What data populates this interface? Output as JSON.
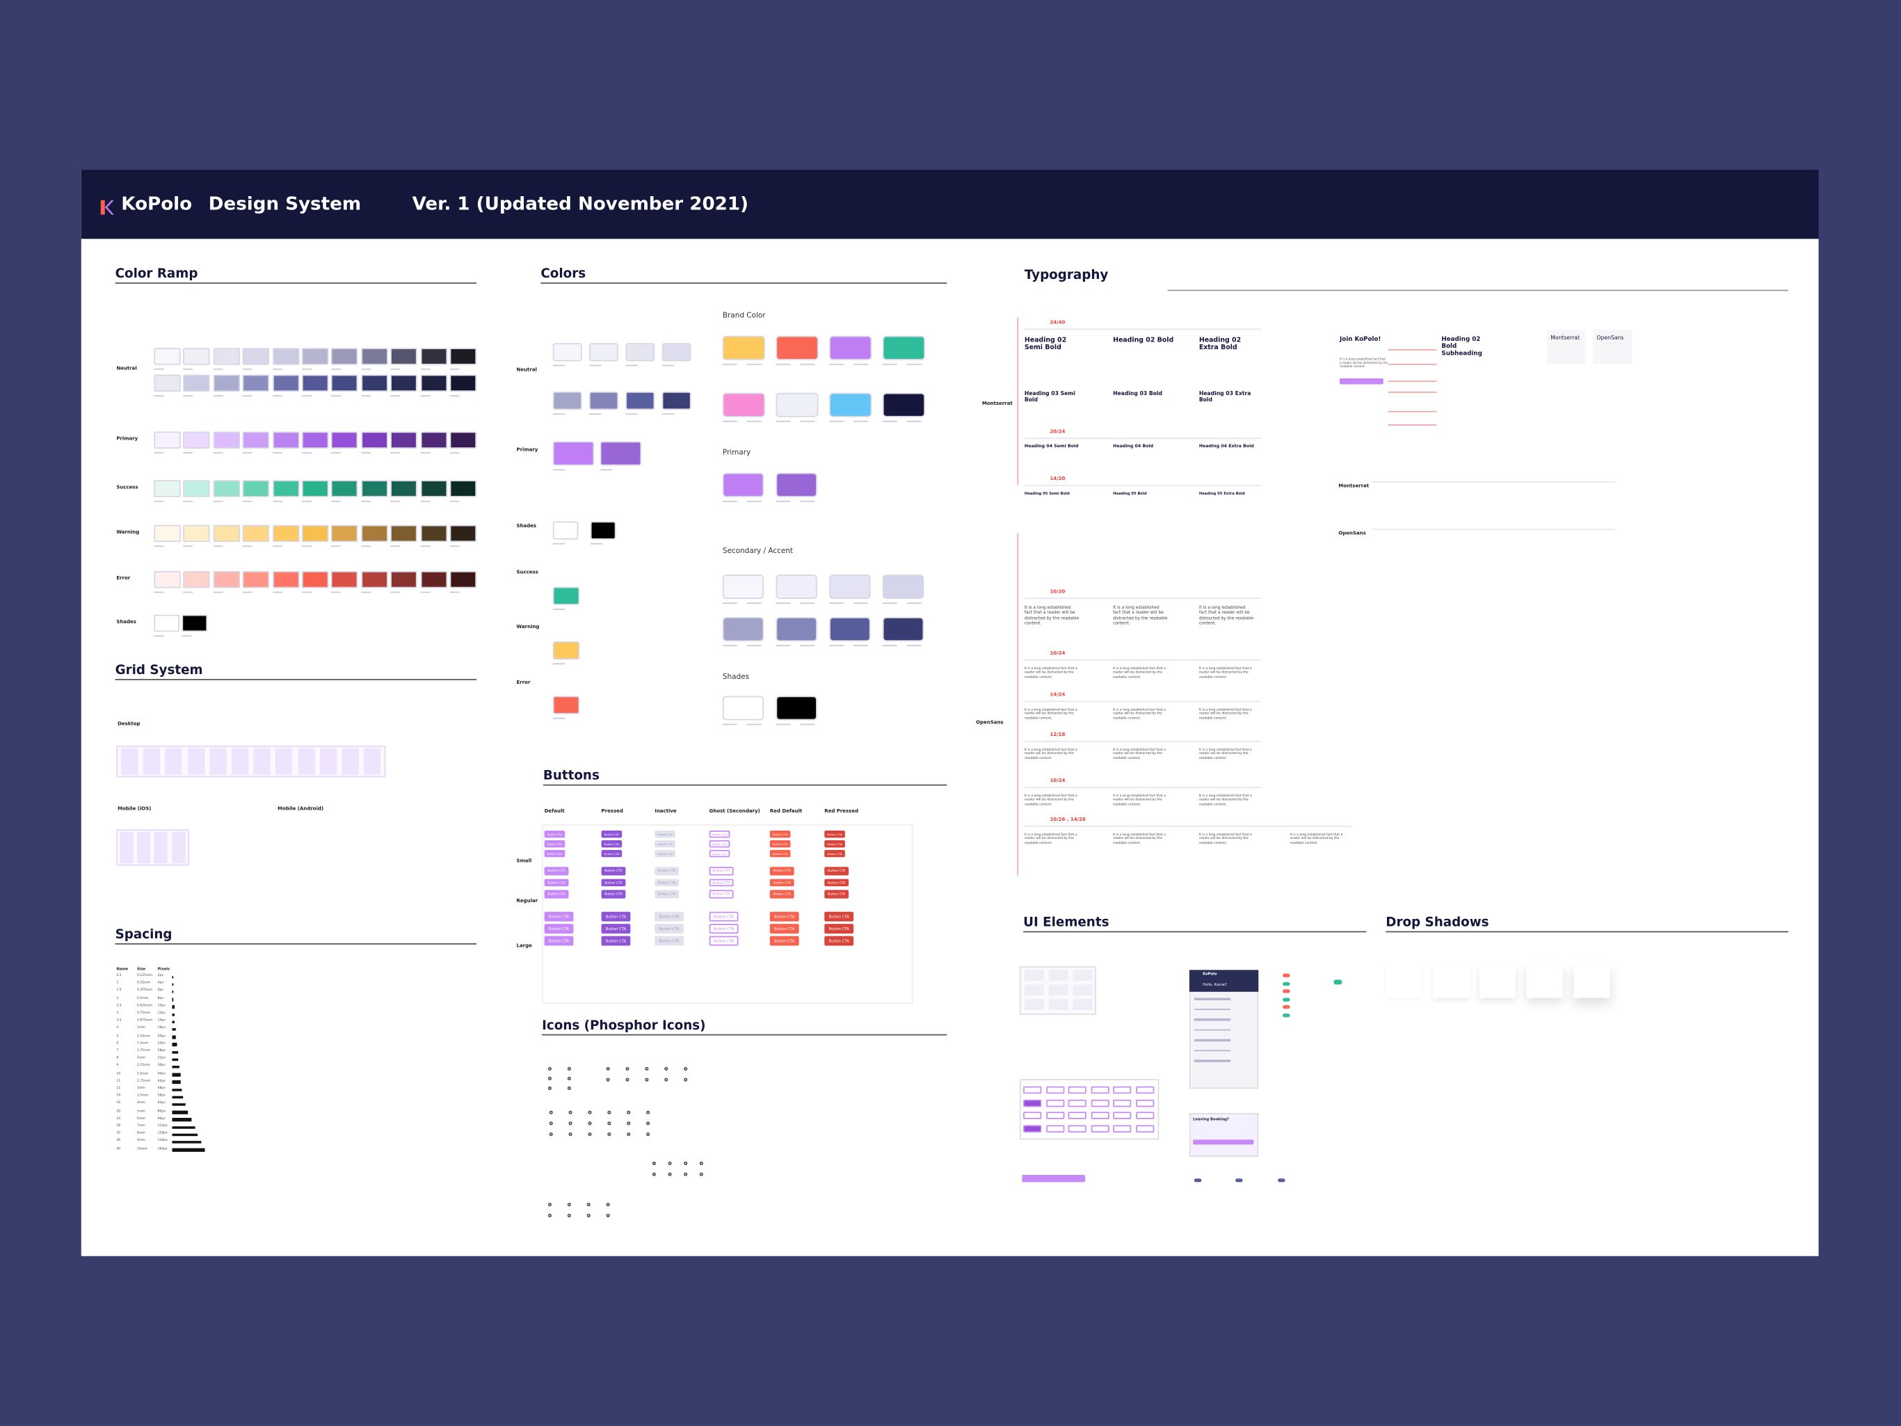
{
  "header": {
    "logo": "KoPolo",
    "title": "Design System",
    "version": "Ver. 1 (Updated November 2021)"
  },
  "color_ramp": {
    "title": "Color Ramp",
    "rows": [
      {
        "label": "Neutral",
        "ramps": [
          [
            "#f7f7fb",
            "#efeff6",
            "#e4e4f0",
            "#d8d8ea",
            "#cacae0",
            "#b5b5d0",
            "#9a9ab8",
            "#7b7b99",
            "#55556e",
            "#32323f",
            "#1c1c24"
          ],
          [
            "#e8e9f3",
            "#c9cbe3",
            "#a9abcf",
            "#8a8dbd",
            "#6c70aa",
            "#535899",
            "#444a85",
            "#363b6d",
            "#2a2e56",
            "#1e2140",
            "#14162d"
          ]
        ]
      },
      {
        "label": "Primary",
        "ramps": [
          [
            "#f8f0ff",
            "#ecd9ff",
            "#dcbcfc",
            "#cc9ef7",
            "#bb82f2",
            "#a866e8",
            "#9450d8",
            "#7d3fbf",
            "#673399",
            "#4f2876",
            "#361c52"
          ]
        ]
      },
      {
        "label": "Success",
        "ramps": [
          [
            "#e6f7f2",
            "#bff0e1",
            "#94e2cc",
            "#66d2b4",
            "#3ec29e",
            "#28b38c",
            "#22977a",
            "#1d7c65",
            "#175f4f",
            "#12443a",
            "#0c2a25"
          ]
        ]
      },
      {
        "label": "Warning",
        "ramps": [
          [
            "#fff8ea",
            "#ffefc8",
            "#ffe3a6",
            "#ffd683",
            "#fdca62",
            "#f7c04e",
            "#d9a24b",
            "#a77c3b",
            "#7d5d2e",
            "#523e21",
            "#2e2316"
          ]
        ]
      },
      {
        "label": "Error",
        "ramps": [
          [
            "#fff0ee",
            "#ffd3cd",
            "#ffb3aa",
            "#ff9487",
            "#ff7566",
            "#f7634f",
            "#dc5145",
            "#b2413a",
            "#8a322e",
            "#632422",
            "#3d1716"
          ]
        ]
      },
      {
        "label": "Shades",
        "ramps": [
          [
            "#ffffff",
            "#000000"
          ]
        ]
      }
    ]
  },
  "grid_system": {
    "title": "Grid System",
    "labels": [
      "Desktop",
      "Mobile (iOS)",
      "Mobile (Android)"
    ]
  },
  "spacing": {
    "title": "Spacing",
    "columns": [
      "Name",
      "Size",
      "Pixels"
    ],
    "rows": [
      [
        "0.5",
        "0.125rem",
        "2px"
      ],
      [
        "1",
        "0.25rem",
        "4px"
      ],
      [
        "1.5",
        "0.375rem",
        "6px"
      ],
      [
        "2",
        "0.5rem",
        "8px"
      ],
      [
        "2.5",
        "0.625rem",
        "10px"
      ],
      [
        "3",
        "0.75rem",
        "12px"
      ],
      [
        "3.5",
        "0.875rem",
        "14px"
      ],
      [
        "4",
        "1rem",
        "16px"
      ],
      [
        "5",
        "1.25rem",
        "20px"
      ],
      [
        "6",
        "1.5rem",
        "24px"
      ],
      [
        "7",
        "1.75rem",
        "28px"
      ],
      [
        "8",
        "2rem",
        "32px"
      ],
      [
        "9",
        "2.25rem",
        "36px"
      ],
      [
        "10",
        "2.5rem",
        "40px"
      ],
      [
        "11",
        "2.75rem",
        "44px"
      ],
      [
        "12",
        "3rem",
        "48px"
      ],
      [
        "14",
        "3.5rem",
        "56px"
      ],
      [
        "16",
        "4rem",
        "64px"
      ],
      [
        "20",
        "5rem",
        "80px"
      ],
      [
        "24",
        "6rem",
        "96px"
      ],
      [
        "28",
        "7rem",
        "112px"
      ],
      [
        "32",
        "8rem",
        "128px"
      ],
      [
        "36",
        "9rem",
        "144px"
      ],
      [
        "40",
        "10rem",
        "160px"
      ]
    ]
  },
  "colors": {
    "title": "Colors",
    "groups": [
      {
        "label": "Neutral",
        "colors": [
          "#f7f7fb",
          "#efeff7",
          "#e6e6f3",
          "#dedeef",
          "#a3a5c9",
          "#8386b6",
          "#5a5f9f",
          "#3b3f73"
        ]
      },
      {
        "label": "Primary",
        "colors": [
          "#c07ef5",
          "#9966d6"
        ]
      },
      {
        "label": "Shades",
        "colors": [
          "#ffffff",
          "#000000"
        ]
      },
      {
        "label": "Success",
        "colors": [
          "#2fbc9a"
        ]
      },
      {
        "label": "Warning",
        "colors": [
          "#fdc95d"
        ]
      },
      {
        "label": "Error",
        "colors": [
          "#fa6855"
        ]
      }
    ],
    "brand": {
      "label": "Brand Color",
      "colors": [
        "#fdc95d",
        "#fa6855",
        "#c07ef5",
        "#2fbc9a",
        "#f88bd6",
        "#efeff9",
        "#64c6f7",
        "#15163c"
      ]
    },
    "primary": {
      "label": "Primary",
      "colors": [
        "#c07ef5",
        "#9966d6"
      ]
    },
    "accent": {
      "label": "Secondary / Accent",
      "colors": [
        "#f7f6fd",
        "#efeefa",
        "#e3e3f3",
        "#d4d4ea",
        "#a2a3c9",
        "#8286b8",
        "#575c9a",
        "#383c70"
      ]
    },
    "shades": {
      "label": "Shades",
      "colors": [
        "#ffffff",
        "#000000"
      ]
    }
  },
  "buttons": {
    "title": "Buttons",
    "text": "Button CTA",
    "sizes": [
      "Small",
      "Regular",
      "Large"
    ],
    "columns": [
      {
        "label": "Default",
        "fill": "#c689f7",
        "ink": "#ffffff"
      },
      {
        "label": "Pressed",
        "fill": "#8f55d6",
        "ink": "#ffffff"
      },
      {
        "label": "Inactive",
        "fill": "#e2e2ef",
        "ink": "#9a9ab8"
      },
      {
        "label": "Ghost (Secondary)",
        "fill": "#ffffff",
        "ink": "#c689f7"
      },
      {
        "label": "Red Default",
        "fill": "#f7634f",
        "ink": "#ffffff"
      },
      {
        "label": "Red Pressed",
        "fill": "#d9453a",
        "ink": "#ffffff"
      }
    ]
  },
  "icons": {
    "title": "Icons (Phosphor Icons)"
  },
  "typography": {
    "title": "Typography",
    "fonts": [
      "Montserrat",
      "OpenSans"
    ],
    "headings": [
      [
        "Heading 02 Semi Bold",
        "Heading 02 Bold",
        "Heading 02 Extra Bold"
      ],
      [
        "Heading 03 Semi Bold",
        "Heading 03 Bold",
        "Heading 03 Extra Bold"
      ],
      [
        "Heading 04 Semi Bold",
        "Heading 04 Bold",
        "Heading 04 Extra Bold"
      ],
      [
        "Heading 05 Semi Bold",
        "Heading 05 Bold",
        "Heading 05 Extra Bold"
      ]
    ],
    "heading_sizes": [
      "24/40",
      "20/24",
      "14/20"
    ],
    "body_sizes": [
      "10/20",
      "10/24",
      "14/24",
      "12/18",
      "10/24",
      "10/26 , 14/26"
    ],
    "body_text": "It is a long established fact that a reader will be distracted by the readable content.",
    "sample": {
      "title": "Join KoPolo!",
      "subheading": "Heading 02 Bold Subheading"
    }
  },
  "ui_elements": {
    "title": "UI Elements",
    "app_name": "KoPolo",
    "greeting": "Hello, Kamal!",
    "dialog_title": "Leaving Booking?"
  },
  "drop_shadows": {
    "title": "Drop Shadows"
  }
}
